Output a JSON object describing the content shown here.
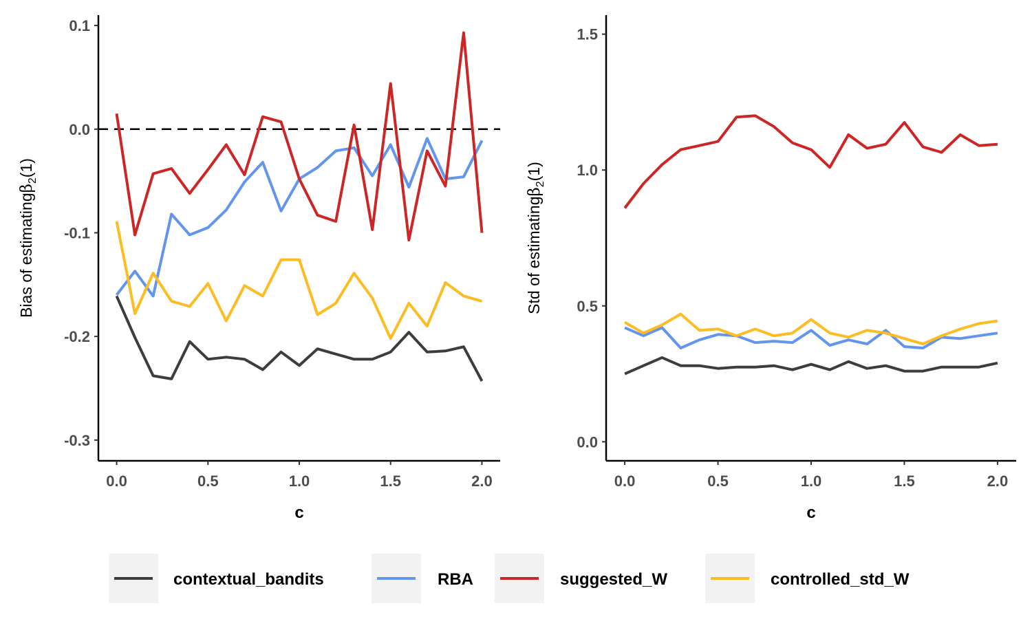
{
  "colors": {
    "contextual_bandits": "#3d3d3d",
    "RBA": "#6495ed",
    "suggested_W": "#cd2626",
    "controlled_std_W": "#fbbd23"
  },
  "legend": [
    "contextual_bandits",
    "RBA",
    "suggested_W",
    "controlled_std_W"
  ],
  "chart_data": [
    {
      "type": "line",
      "title": "",
      "xlabel": "c",
      "ylabel_prefix": "Bias of estimating",
      "ylabel_symbol": "β",
      "ylabel_sub": "2",
      "ylabel_suffix": "(1)",
      "xlim": [
        -0.1,
        2.1
      ],
      "ylim": [
        -0.32,
        0.11
      ],
      "xticks": [
        "0.0",
        "0.5",
        "1.0",
        "1.5",
        "2.0"
      ],
      "yticks": [
        "-0.3",
        "-0.2",
        "-0.1",
        "0.0",
        "0.1"
      ],
      "reference_line": 0.0,
      "x": [
        0.0,
        0.1,
        0.2,
        0.3,
        0.4,
        0.5,
        0.6,
        0.7,
        0.8,
        0.9,
        1.0,
        1.1,
        1.2,
        1.3,
        1.4,
        1.5,
        1.6,
        1.7,
        1.8,
        1.9,
        2.0
      ],
      "series": [
        {
          "name": "contextual_bandits",
          "values": [
            -0.161,
            -0.201,
            -0.238,
            -0.241,
            -0.205,
            -0.222,
            -0.22,
            -0.222,
            -0.232,
            -0.215,
            -0.228,
            -0.212,
            -0.217,
            -0.222,
            -0.222,
            -0.215,
            -0.196,
            -0.215,
            -0.214,
            -0.21,
            -0.243
          ]
        },
        {
          "name": "RBA",
          "values": [
            -0.16,
            -0.137,
            -0.161,
            -0.082,
            -0.102,
            -0.095,
            -0.078,
            -0.051,
            -0.032,
            -0.079,
            -0.048,
            -0.037,
            -0.021,
            -0.018,
            -0.045,
            -0.015,
            -0.056,
            -0.009,
            -0.048,
            -0.046,
            -0.011
          ]
        },
        {
          "name": "suggested_W",
          "values": [
            0.015,
            -0.102,
            -0.043,
            -0.038,
            -0.062,
            -0.039,
            -0.015,
            -0.044,
            0.012,
            0.007,
            -0.048,
            -0.083,
            -0.089,
            0.004,
            -0.097,
            0.044,
            -0.107,
            -0.021,
            -0.055,
            0.093,
            -0.1
          ]
        },
        {
          "name": "controlled_std_W",
          "values": [
            -0.089,
            -0.178,
            -0.139,
            -0.166,
            -0.171,
            -0.149,
            -0.185,
            -0.151,
            -0.161,
            -0.126,
            -0.126,
            -0.179,
            -0.168,
            -0.139,
            -0.163,
            -0.202,
            -0.168,
            -0.19,
            -0.148,
            -0.161,
            -0.166
          ]
        }
      ]
    },
    {
      "type": "line",
      "title": "",
      "xlabel": "c",
      "ylabel_prefix": "Std of estimating",
      "ylabel_symbol": "β",
      "ylabel_sub": "2",
      "ylabel_suffix": "(1)",
      "xlim": [
        -0.1,
        2.1
      ],
      "ylim": [
        -0.07,
        1.57
      ],
      "xticks": [
        "0.0",
        "0.5",
        "1.0",
        "1.5",
        "2.0"
      ],
      "yticks": [
        "0.0",
        "0.5",
        "1.0",
        "1.5"
      ],
      "x": [
        0.0,
        0.1,
        0.2,
        0.3,
        0.4,
        0.5,
        0.6,
        0.7,
        0.8,
        0.9,
        1.0,
        1.1,
        1.2,
        1.3,
        1.4,
        1.5,
        1.6,
        1.7,
        1.8,
        1.9,
        2.0
      ],
      "series": [
        {
          "name": "contextual_bandits",
          "values": [
            0.25,
            0.28,
            0.31,
            0.28,
            0.28,
            0.27,
            0.275,
            0.275,
            0.28,
            0.265,
            0.285,
            0.265,
            0.295,
            0.27,
            0.28,
            0.26,
            0.26,
            0.275,
            0.275,
            0.275,
            0.29
          ]
        },
        {
          "name": "RBA",
          "values": [
            0.42,
            0.39,
            0.42,
            0.345,
            0.375,
            0.395,
            0.39,
            0.365,
            0.37,
            0.365,
            0.41,
            0.355,
            0.375,
            0.36,
            0.41,
            0.35,
            0.345,
            0.385,
            0.38,
            0.39,
            0.4
          ]
        },
        {
          "name": "suggested_W",
          "values": [
            0.86,
            0.95,
            1.02,
            1.075,
            1.09,
            1.105,
            1.195,
            1.2,
            1.16,
            1.1,
            1.075,
            1.01,
            1.13,
            1.08,
            1.095,
            1.175,
            1.085,
            1.065,
            1.13,
            1.09,
            1.095
          ]
        },
        {
          "name": "controlled_std_W",
          "values": [
            0.44,
            0.4,
            0.43,
            0.47,
            0.41,
            0.415,
            0.39,
            0.415,
            0.39,
            0.4,
            0.45,
            0.4,
            0.385,
            0.41,
            0.4,
            0.38,
            0.36,
            0.39,
            0.415,
            0.435,
            0.445
          ]
        }
      ]
    }
  ]
}
